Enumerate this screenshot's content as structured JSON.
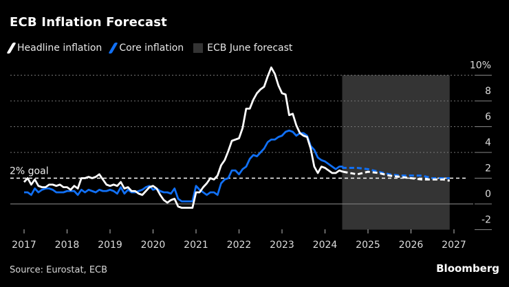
{
  "title": "ECB Inflation Forecast",
  "source": "Source: Eurostat, ECB",
  "logo": "Bloomberg",
  "colors": {
    "headline": "#ffffff",
    "core": "#1170f5",
    "forecast_band": "#343434",
    "background": "#000000"
  },
  "chart_data": {
    "type": "line",
    "title": "ECB Inflation Forecast",
    "xlabel": "",
    "ylabel": "",
    "xlim": [
      2016.6,
      2027.2
    ],
    "ylim": [
      -2,
      10
    ],
    "x_ticks": [
      "2017",
      "2018",
      "2019",
      "2020",
      "2021",
      "2022",
      "2023",
      "2024",
      "2025",
      "2026",
      "2027"
    ],
    "y_ticks": [
      "10%",
      "8",
      "6",
      "4",
      "2",
      "0",
      "-2"
    ],
    "y_tick_values": [
      10,
      8,
      6,
      4,
      2,
      0,
      -2
    ],
    "grid": true,
    "legend": "top-left",
    "legend_entries": [
      "Headline inflation",
      "Core inflation",
      "ECB June forecast"
    ],
    "reference_line": {
      "value": 2,
      "label": "2% goal"
    },
    "forecast_band": {
      "from": 2024.4,
      "to": 2026.9,
      "label": "ECB June forecast"
    },
    "actual_start": 2017.0,
    "series": [
      {
        "name": "Headline inflation",
        "monthly_actual": [
          1.7,
          2.0,
          1.5,
          1.9,
          1.4,
          1.3,
          1.3,
          1.5,
          1.5,
          1.4,
          1.5,
          1.3,
          1.3,
          1.1,
          1.4,
          1.2,
          2.0,
          2.0,
          2.1,
          2.0,
          2.1,
          2.3,
          1.9,
          1.5,
          1.4,
          1.5,
          1.4,
          1.7,
          1.2,
          1.3,
          1.0,
          1.0,
          0.8,
          0.7,
          1.0,
          1.3,
          1.4,
          1.2,
          0.7,
          0.3,
          0.1,
          0.3,
          0.4,
          -0.2,
          -0.3,
          -0.3,
          -0.3,
          -0.3,
          0.9,
          0.9,
          1.3,
          1.6,
          2.0,
          1.9,
          2.2,
          3.0,
          3.4,
          4.1,
          4.9,
          5.0,
          5.1,
          5.9,
          7.4,
          7.4,
          8.1,
          8.6,
          8.9,
          9.1,
          9.9,
          10.6,
          10.1,
          9.2,
          8.6,
          8.5,
          6.9,
          7.0,
          6.1,
          5.5,
          5.3,
          5.2,
          4.3,
          2.9,
          2.4,
          2.9,
          2.8,
          2.6,
          2.4,
          2.4,
          2.6,
          2.5
        ],
        "forecast": {
          "x": [
            2024.42,
            2024.75,
            2025.0,
            2025.25,
            2025.5,
            2025.75,
            2026.0,
            2026.25,
            2026.5,
            2026.75,
            2026.9
          ],
          "y": [
            2.5,
            2.3,
            2.5,
            2.4,
            2.2,
            2.1,
            2.0,
            1.9,
            1.9,
            1.9,
            1.8
          ]
        }
      },
      {
        "name": "Core inflation",
        "monthly_actual": [
          0.9,
          0.9,
          0.7,
          1.2,
          0.9,
          1.1,
          1.2,
          1.2,
          1.1,
          0.9,
          0.9,
          0.9,
          1.0,
          1.0,
          1.0,
          0.7,
          1.1,
          0.9,
          1.1,
          1.0,
          0.9,
          1.1,
          1.0,
          1.0,
          1.1,
          1.0,
          0.8,
          1.3,
          0.8,
          1.1,
          0.9,
          0.9,
          1.0,
          1.1,
          1.3,
          1.4,
          1.1,
          1.2,
          1.0,
          0.9,
          0.9,
          0.8,
          1.2,
          0.4,
          0.2,
          0.2,
          0.2,
          0.2,
          1.4,
          1.1,
          0.9,
          0.7,
          0.9,
          0.9,
          0.7,
          1.6,
          1.9,
          2.0,
          2.6,
          2.6,
          2.3,
          2.7,
          2.9,
          3.5,
          3.8,
          3.7,
          4.0,
          4.3,
          4.8,
          5.0,
          5.0,
          5.2,
          5.3,
          5.6,
          5.7,
          5.6,
          5.3,
          5.5,
          5.5,
          5.3,
          4.5,
          4.2,
          3.6,
          3.4,
          3.3,
          3.1,
          2.9,
          2.7,
          2.9,
          2.9
        ],
        "forecast": {
          "x": [
            2024.42,
            2024.75,
            2025.0,
            2025.25,
            2025.5,
            2025.75,
            2026.0,
            2026.25,
            2026.5,
            2026.75,
            2026.9
          ],
          "y": [
            2.8,
            2.8,
            2.7,
            2.5,
            2.3,
            2.2,
            2.2,
            2.2,
            2.0,
            2.0,
            2.0
          ]
        }
      }
    ]
  }
}
